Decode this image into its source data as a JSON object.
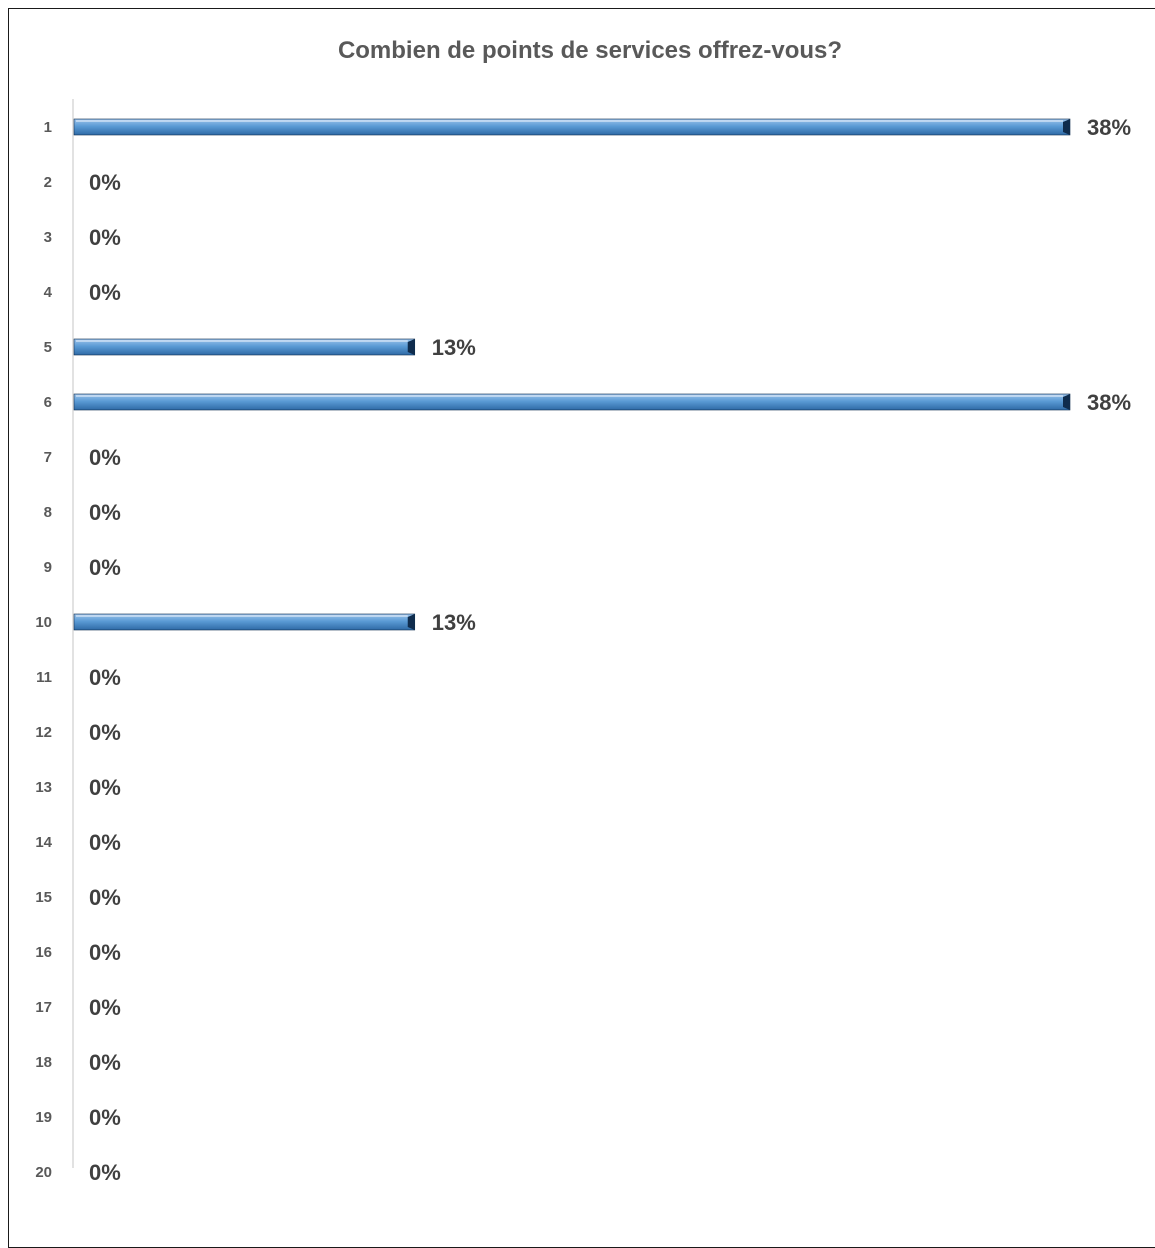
{
  "chart_data": {
    "type": "bar",
    "orientation": "horizontal",
    "title": "Combien de points de services offrez-vous?",
    "categories": [
      "1",
      "2",
      "3",
      "4",
      "5",
      "6",
      "7",
      "8",
      "9",
      "10",
      "11",
      "12",
      "13",
      "14",
      "15",
      "16",
      "17",
      "18",
      "19",
      "20"
    ],
    "values": [
      38,
      0,
      0,
      0,
      13,
      38,
      0,
      0,
      0,
      13,
      0,
      0,
      0,
      0,
      0,
      0,
      0,
      0,
      0,
      0
    ],
    "value_labels": [
      "38%",
      "0%",
      "0%",
      "0%",
      "13%",
      "38%",
      "0%",
      "0%",
      "0%",
      "13%",
      "0%",
      "0%",
      "0%",
      "0%",
      "0%",
      "0%",
      "0%",
      "0%",
      "0%",
      "0%"
    ],
    "unit": "%",
    "xlabel": "",
    "ylabel": "",
    "xlim": [
      0,
      38
    ],
    "grid": false,
    "legend": "none",
    "colors": {
      "bar_light": "#9cc3ea",
      "bar_mid": "#5b9bd5",
      "bar_dark": "#2e6aa6",
      "bar_edge": "#0f2c4d",
      "axis": "#d9d9d9",
      "title": "#595959",
      "tick": "#595959",
      "label": "#404040"
    }
  }
}
